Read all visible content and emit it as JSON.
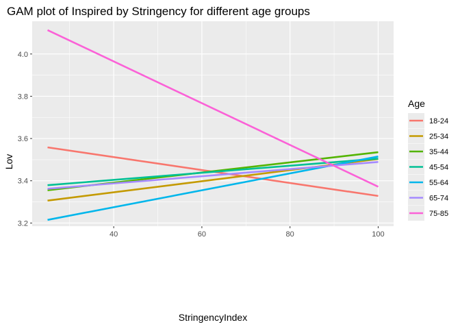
{
  "chart_data": {
    "type": "line",
    "title": "GAM plot of Inspired by Stringency for different age groups",
    "xlabel": "StringencyIndex",
    "ylabel": "Lov",
    "xlim": [
      21.5,
      103.5
    ],
    "ylim": [
      3.185,
      4.155
    ],
    "xticks": [
      40,
      60,
      80,
      100
    ],
    "yticks": [
      3.2,
      3.4,
      3.6,
      3.8,
      4.0
    ],
    "xtick_labels": [
      "40",
      "60",
      "80",
      "100"
    ],
    "ytick_labels": [
      "3.2",
      "3.4",
      "3.6",
      "3.8",
      "4.0"
    ],
    "grid": true,
    "legend": {
      "title": "Age",
      "position": "right"
    },
    "series": [
      {
        "name": "18-24",
        "color": "#F8766D",
        "x": [
          25,
          100
        ],
        "y": [
          3.558,
          3.328
        ]
      },
      {
        "name": "25-34",
        "color": "#C49A00",
        "x": [
          25,
          100
        ],
        "y": [
          3.306,
          3.503
        ]
      },
      {
        "name": "35-44",
        "color": "#53B400",
        "x": [
          25,
          100
        ],
        "y": [
          3.355,
          3.535
        ]
      },
      {
        "name": "45-54",
        "color": "#00C094",
        "x": [
          25,
          100
        ],
        "y": [
          3.379,
          3.505
        ]
      },
      {
        "name": "55-64",
        "color": "#00B6EB",
        "x": [
          25,
          100
        ],
        "y": [
          3.215,
          3.515
        ]
      },
      {
        "name": "65-74",
        "color": "#A58AFF",
        "x": [
          25,
          100
        ],
        "y": [
          3.362,
          3.489
        ]
      },
      {
        "name": "75-85",
        "color": "#FB61D7",
        "x": [
          25,
          100
        ],
        "y": [
          4.113,
          3.372
        ]
      }
    ]
  }
}
